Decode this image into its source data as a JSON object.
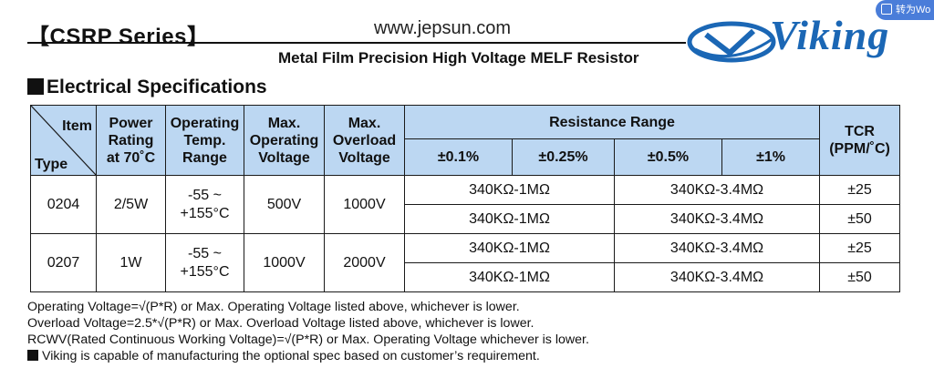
{
  "header": {
    "series_title": "【CSRP Series】",
    "website": "www.jepsun.com",
    "subtitle": "Metal Film Precision High Voltage MELF Resistor",
    "brand": "Viking"
  },
  "section_title": "Electrical Specifications",
  "table": {
    "corner_item": "Item",
    "corner_type": "Type",
    "headers": {
      "power_l1": "Power",
      "power_l2": "Rating",
      "power_l3": "at 70˚C",
      "temp_l1": "Operating",
      "temp_l2": "Temp.",
      "temp_l3": "Range",
      "opv_l1": "Max.",
      "opv_l2": "Operating",
      "opv_l3": "Voltage",
      "ovl_l1": "Max.",
      "ovl_l2": "Overload",
      "ovl_l3": "Voltage",
      "resistance_range": "Resistance Range",
      "tcr_l1": "TCR",
      "tcr_l2": "(PPM/˚C)",
      "tol_01": "±0.1%",
      "tol_025": "±0.25%",
      "tol_05": "±0.5%",
      "tol_1": "±1%"
    },
    "rows": [
      {
        "type": "0204",
        "power": "2/5W",
        "temp_l1": "-55 ~",
        "temp_l2": "+155°C",
        "op_voltage": "500V",
        "ov_voltage": "1000V",
        "r1_low": "340KΩ-1MΩ",
        "r1_high": "340KΩ-3.4MΩ",
        "r1_tcr": "±25",
        "r2_low": "340KΩ-1MΩ",
        "r2_high": "340KΩ-3.4MΩ",
        "r2_tcr": "±50"
      },
      {
        "type": "0207",
        "power": "1W",
        "temp_l1": "-55 ~",
        "temp_l2": "+155°C",
        "op_voltage": "1000V",
        "ov_voltage": "2000V",
        "r1_low": "340KΩ-1MΩ",
        "r1_high": "340KΩ-3.4MΩ",
        "r1_tcr": "±25",
        "r2_low": "340KΩ-1MΩ",
        "r2_high": "340KΩ-3.4MΩ",
        "r2_tcr": "±50"
      }
    ]
  },
  "notes": {
    "n1": "Operating Voltage=√(P*R) or Max. Operating Voltage listed above, whichever is lower.",
    "n2": "Overload Voltage=2.5*√(P*R) or Max. Overload Voltage listed above, whichever is lower.",
    "n3": "RCWV(Rated Continuous Working Voltage)=√(P*R) or Max. Operating Voltage whichever is lower.",
    "n4": "Viking is capable of manufacturing the optional spec based on customer’s requirement."
  },
  "overlay": {
    "badge_text": "转为Wo"
  },
  "colors": {
    "header_fill": "#bcd7f2",
    "brand_blue": "#1b67b5"
  }
}
